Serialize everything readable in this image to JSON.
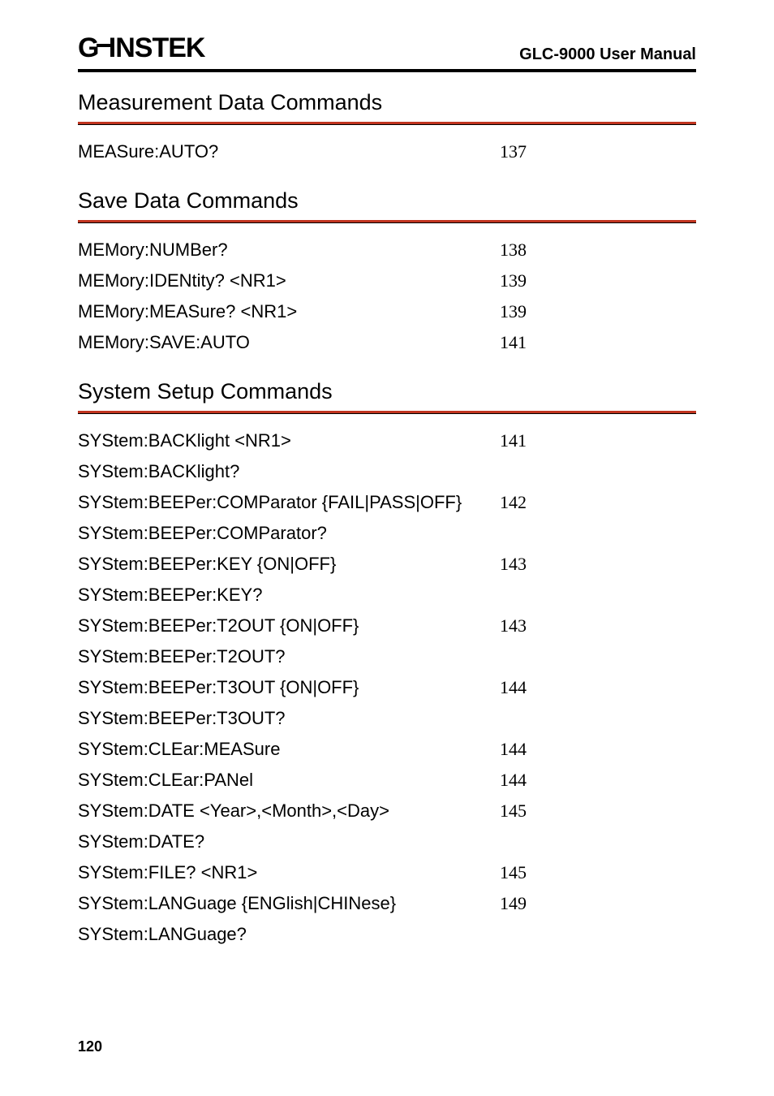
{
  "header": {
    "logo_text_1": "G",
    "logo_text_2": "INSTEK",
    "manual_title": "GLC-9000 User Manual"
  },
  "sections": {
    "measurement": {
      "title": "Measurement Data Commands",
      "rows": [
        {
          "cmd": "MEASure:AUTO?",
          "pg": "137"
        }
      ]
    },
    "save": {
      "title": "Save Data Commands",
      "rows": [
        {
          "cmd": "MEMory:NUMBer?",
          "pg": "138"
        },
        {
          "cmd": "MEMory:IDENtity? <NR1>",
          "pg": "139"
        },
        {
          "cmd": "MEMory:MEASure? <NR1>",
          "pg": "139"
        },
        {
          "cmd": "MEMory:SAVE:AUTO",
          "pg": "141"
        }
      ]
    },
    "system": {
      "title": "System Setup Commands",
      "rows": [
        {
          "cmd": "SYStem:BACKlight <NR1>",
          "pg": "141"
        },
        {
          "cmd": "SYStem:BACKlight?",
          "pg": ""
        },
        {
          "cmd": "SYStem:BEEPer:COMParator {FAIL|PASS|OFF}",
          "pg": "142"
        },
        {
          "cmd": "SYStem:BEEPer:COMParator?",
          "pg": ""
        },
        {
          "cmd": "SYStem:BEEPer:KEY {ON|OFF}",
          "pg": "143"
        },
        {
          "cmd": "SYStem:BEEPer:KEY?",
          "pg": ""
        },
        {
          "cmd": "SYStem:BEEPer:T2OUT {ON|OFF}",
          "pg": "143"
        },
        {
          "cmd": "SYStem:BEEPer:T2OUT?",
          "pg": ""
        },
        {
          "cmd": "SYStem:BEEPer:T3OUT {ON|OFF}",
          "pg": "144"
        },
        {
          "cmd": "SYStem:BEEPer:T3OUT?",
          "pg": ""
        },
        {
          "cmd": "SYStem:CLEar:MEASure",
          "pg": "144"
        },
        {
          "cmd": "SYStem:CLEar:PANel",
          "pg": "144"
        },
        {
          "cmd": "SYStem:DATE <Year>,<Month>,<Day>",
          "pg": "145"
        },
        {
          "cmd": "SYStem:DATE?",
          "pg": ""
        },
        {
          "cmd": "SYStem:FILE? <NR1>",
          "pg": "145"
        },
        {
          "cmd": "SYStem:LANGuage {ENGlish|CHINese}",
          "pg": "149"
        },
        {
          "cmd": "SYStem:LANGuage?",
          "pg": ""
        }
      ]
    }
  },
  "page_number": "120",
  "colors": {
    "rule_red": "#c0341f",
    "rule_black": "#000000",
    "text": "#000000",
    "background": "#ffffff"
  }
}
